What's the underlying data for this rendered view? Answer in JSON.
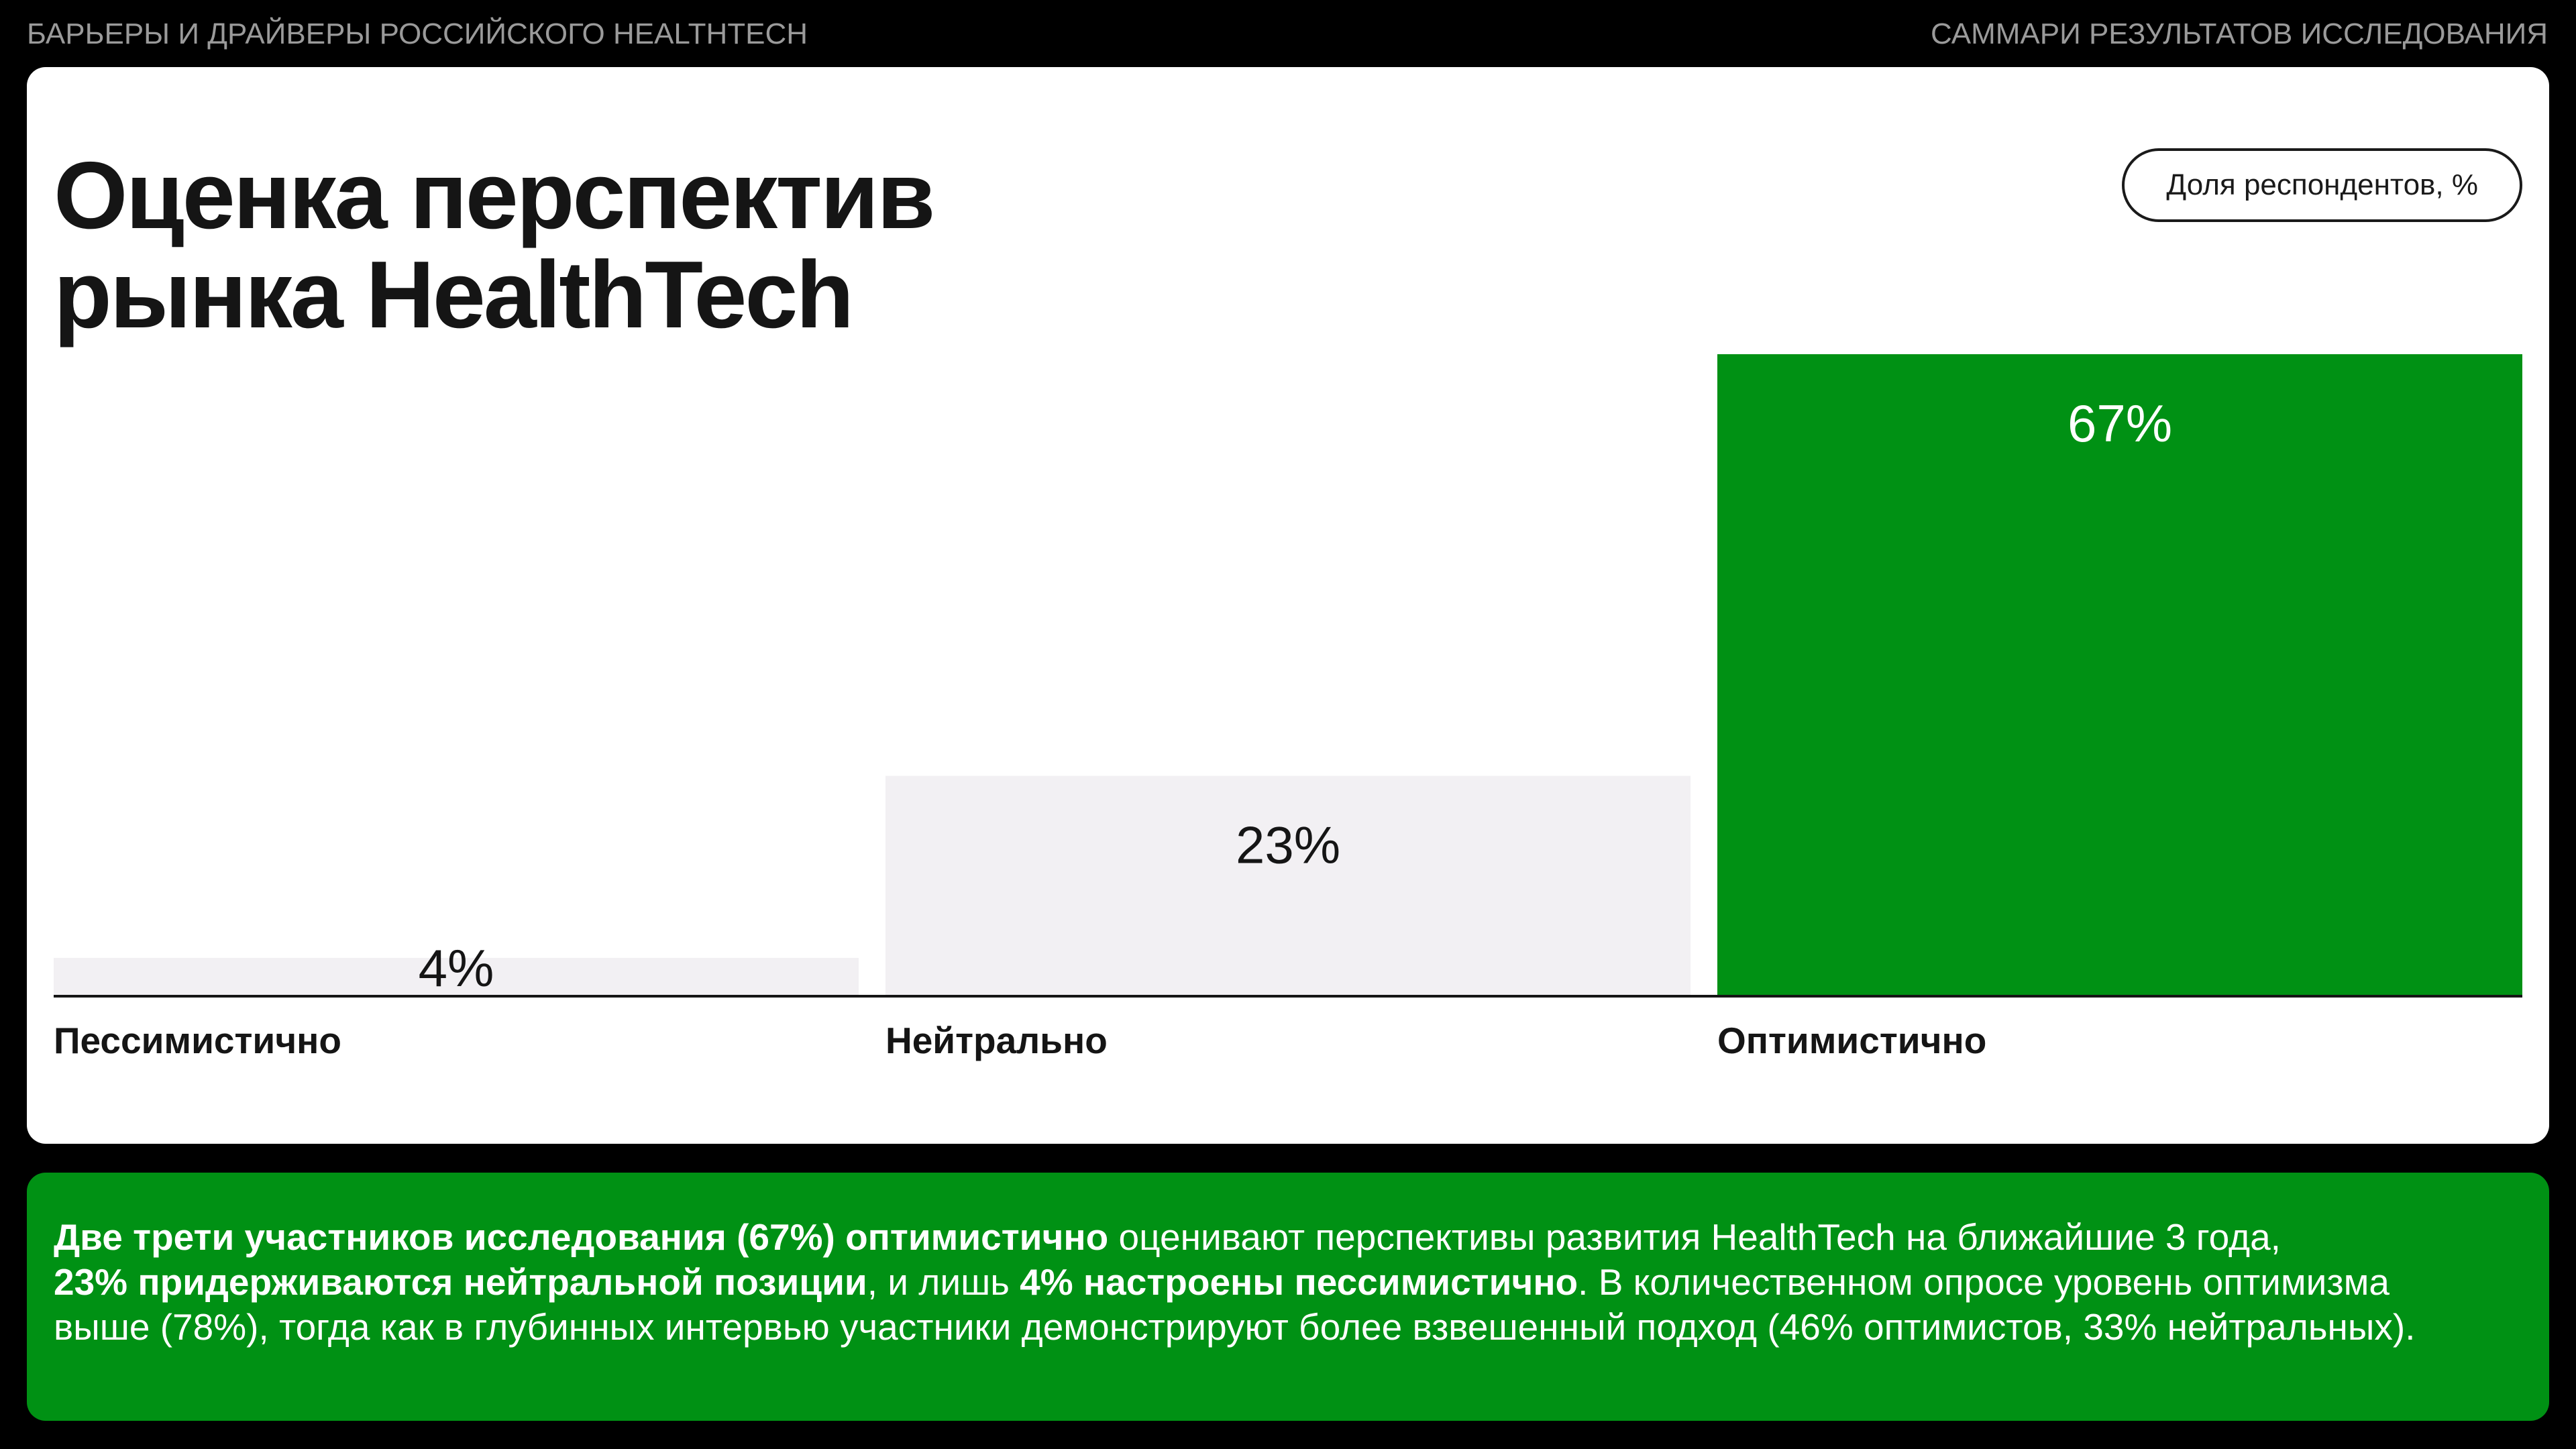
{
  "header": {
    "left_caption": "БАРЬЕРЫ И ДРАЙВЕРЫ РОССИЙСКОГО HEALTHTECH",
    "right_caption": "САММАРИ РЕЗУЛЬТАТОВ ИССЛЕДОВАНИЯ"
  },
  "card": {
    "title_line1": "Оценка перспектив",
    "title_line2": "рынка HealthTech",
    "unit_label": "Доля респондентов, %"
  },
  "chart_data": {
    "type": "bar",
    "title": "Оценка перспектив рынка HealthTech",
    "ylabel": "Доля респондентов, %",
    "categories": [
      "Пессимистично",
      "Нейтрально",
      "Оптимистично"
    ],
    "values": [
      4,
      23,
      67
    ],
    "labels": [
      "4%",
      "23%",
      "67%"
    ],
    "ylim": [
      0,
      67
    ],
    "grid": false,
    "colors": [
      "#f2f0f3",
      "#f2f0f3",
      "#009114"
    ],
    "label_colors": [
      "#151515",
      "#151515",
      "#ffffff"
    ]
  },
  "summary": {
    "bold_1": "Две трети участников исследования (67%) оптимистично",
    "text_1": " оценивают перспективы развития HealthTech на ближайшие 3 года,",
    "bold_2": "23% придерживаются нейтральной позиции",
    "text_2": ", и лишь ",
    "bold_3": "4% настроены пессимистично",
    "text_3": ". В количественном опросе уровень оптимизма",
    "text_4": "выше (78%), тогда как в глубинных интервью участники демонстрируют более взвешенный подход (46% оптимистов, 33% нейтральных)."
  },
  "colors": {
    "background": "#000000",
    "accent_green": "#009114",
    "bar_neutral": "#f2f0f3",
    "text_dark": "#151515"
  }
}
